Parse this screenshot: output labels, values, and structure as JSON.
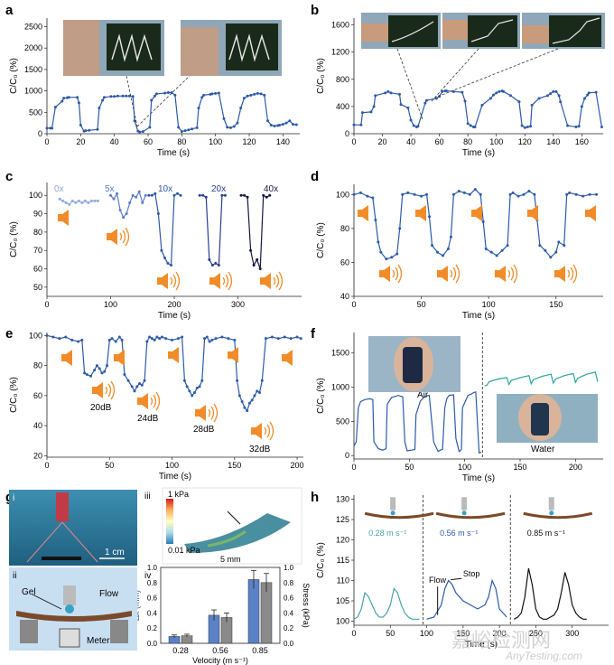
{
  "figure_labels": {
    "a": "a",
    "b": "b",
    "c": "c",
    "d": "d",
    "e": "e",
    "f": "f",
    "g": "g",
    "h": "h"
  },
  "watermark": {
    "line1": "嘉峪检测网",
    "line2": "AnyTesting.com"
  },
  "chart_data": [
    {
      "id": "a",
      "type": "line",
      "xlabel": "Time (s)",
      "ylabel": "C/C₀ (%)",
      "xlim": [
        0,
        150
      ],
      "ylim": [
        0,
        2700
      ],
      "xticks": [
        0,
        20,
        40,
        60,
        80,
        100,
        120,
        140
      ],
      "yticks": [
        0,
        500,
        1000,
        1500,
        2000,
        2500
      ],
      "color": "#2d5aa8",
      "x": [
        0,
        2,
        3,
        5,
        9,
        10,
        12,
        13,
        18,
        19,
        20,
        22,
        23,
        25,
        30,
        31,
        33,
        34,
        38,
        40,
        42,
        45,
        47,
        49,
        51,
        52,
        54,
        55,
        57,
        61,
        62,
        64,
        65,
        70,
        72,
        74,
        76,
        78,
        80,
        82,
        84,
        86,
        89,
        90,
        92,
        93,
        97,
        98,
        100,
        102,
        105,
        107,
        109,
        111,
        113,
        115,
        117,
        119,
        121,
        123,
        125,
        127,
        129,
        131,
        133,
        135,
        137,
        138,
        140,
        142,
        144,
        146,
        148
      ],
      "values": [
        130,
        130,
        130,
        620,
        760,
        830,
        840,
        850,
        850,
        720,
        200,
        60,
        70,
        80,
        100,
        600,
        780,
        850,
        870,
        870,
        880,
        880,
        880,
        880,
        870,
        300,
        60,
        40,
        50,
        150,
        780,
        880,
        930,
        950,
        960,
        960,
        900,
        150,
        50,
        70,
        90,
        110,
        140,
        600,
        850,
        900,
        920,
        930,
        940,
        950,
        350,
        150,
        140,
        170,
        250,
        600,
        830,
        880,
        900,
        920,
        940,
        930,
        900,
        300,
        200,
        180,
        190,
        200,
        220,
        250,
        300,
        220,
        210
      ]
    },
    {
      "id": "b",
      "type": "line",
      "xlabel": "Time (s)",
      "ylabel": "C/C₀ (%)",
      "xlim": [
        0,
        175
      ],
      "ylim": [
        0,
        1700
      ],
      "xticks": [
        0,
        20,
        40,
        60,
        80,
        100,
        120,
        140,
        160
      ],
      "yticks": [
        0,
        400,
        800,
        1200,
        1600
      ],
      "color": "#2d5aa8",
      "x": [
        0,
        5,
        6,
        12,
        14,
        15,
        22,
        24,
        26,
        32,
        33,
        38,
        40,
        42,
        44,
        45,
        50,
        51,
        58,
        60,
        62,
        64,
        65,
        70,
        76,
        78,
        80,
        82,
        84,
        85,
        90,
        96,
        98,
        100,
        102,
        104,
        105,
        110,
        116,
        118,
        120,
        122,
        124,
        125,
        130,
        136,
        138,
        140,
        142,
        144,
        145,
        150,
        156,
        158,
        160,
        162,
        164,
        165,
        170,
        174
      ],
      "values": [
        130,
        130,
        310,
        320,
        400,
        560,
        600,
        620,
        600,
        580,
        430,
        380,
        200,
        120,
        100,
        110,
        450,
        490,
        520,
        550,
        620,
        630,
        630,
        620,
        610,
        480,
        150,
        120,
        100,
        100,
        420,
        520,
        570,
        600,
        620,
        630,
        620,
        560,
        470,
        120,
        90,
        100,
        110,
        420,
        520,
        560,
        590,
        620,
        620,
        560,
        470,
        120,
        100,
        110,
        400,
        520,
        570,
        600,
        610,
        100
      ]
    },
    {
      "id": "c",
      "type": "scatter",
      "xlabel": "Time (s)",
      "ylabel": "C/C₀ (%)",
      "xlim": [
        0,
        400
      ],
      "ylim": [
        45,
        107
      ],
      "xticks": [
        0,
        100,
        200,
        300
      ],
      "yticks": [
        50,
        60,
        70,
        80,
        90,
        100
      ],
      "annotations": [
        "0x",
        "5x",
        "10x",
        "20x",
        "40x"
      ],
      "series": [
        {
          "name": "0x",
          "color": "#8fa9dc",
          "x": [
            20,
            25,
            30,
            35,
            40,
            45,
            50,
            55,
            60,
            65,
            70,
            75,
            80
          ],
          "values": [
            98,
            97,
            96,
            95,
            97,
            96,
            97,
            96,
            97,
            96,
            97,
            97,
            97
          ]
        },
        {
          "name": "5x",
          "color": "#5b7fc4",
          "x": [
            100,
            105,
            110,
            115,
            120,
            125,
            130,
            135,
            140,
            145,
            150,
            155
          ],
          "values": [
            100,
            98,
            101,
            92,
            88,
            90,
            96,
            100,
            99,
            102,
            96,
            100
          ]
        },
        {
          "name": "10x",
          "color": "#2d5aa8",
          "x": [
            160,
            165,
            170,
            175,
            180,
            185,
            190,
            195,
            200,
            205,
            210
          ],
          "values": [
            100,
            100,
            101,
            90,
            70,
            66,
            63,
            62,
            100,
            101,
            100
          ]
        },
        {
          "name": "20x",
          "color": "#2a3f8f",
          "x": [
            240,
            245,
            250,
            255,
            260,
            265,
            270,
            275,
            280
          ],
          "values": [
            100,
            100,
            99,
            65,
            62,
            63,
            62,
            100,
            100
          ]
        },
        {
          "name": "40x",
          "color": "#14183f",
          "x": [
            305,
            310,
            315,
            320,
            325,
            330,
            335,
            340,
            345,
            350
          ],
          "values": [
            100,
            100,
            99,
            70,
            62,
            65,
            60,
            100,
            99,
            100
          ]
        }
      ]
    },
    {
      "id": "d",
      "type": "line",
      "xlabel": "Time (s)",
      "ylabel": "C/C₀ (%)",
      "xlim": [
        0,
        185
      ],
      "ylim": [
        40,
        106
      ],
      "xticks": [
        0,
        50,
        100,
        150
      ],
      "yticks": [
        40,
        60,
        80,
        100
      ],
      "color": "#2d5aa8",
      "x": [
        0,
        5,
        10,
        14,
        16,
        18,
        20,
        24,
        28,
        32,
        34,
        36,
        40,
        45,
        50,
        54,
        56,
        58,
        62,
        66,
        70,
        72,
        74,
        78,
        82,
        86,
        90,
        94,
        96,
        98,
        102,
        106,
        110,
        114,
        116,
        118,
        122,
        126,
        130,
        134,
        136,
        138,
        142,
        146,
        150,
        152,
        156,
        158,
        160,
        165,
        170,
        175,
        180
      ],
      "values": [
        100,
        101,
        99,
        98,
        85,
        72,
        66,
        62,
        63,
        65,
        80,
        100,
        101,
        100,
        99,
        100,
        87,
        70,
        66,
        64,
        68,
        75,
        100,
        102,
        101,
        100,
        103,
        100,
        84,
        68,
        66,
        64,
        67,
        70,
        100,
        101,
        99,
        100,
        102,
        100,
        85,
        70,
        67,
        63,
        66,
        72,
        70,
        100,
        101,
        100,
        99,
        100,
        100
      ]
    },
    {
      "id": "e",
      "type": "scatter",
      "xlabel": "Time (s)",
      "ylabel": "C/C₀ (%)",
      "xlim": [
        0,
        205
      ],
      "ylim": [
        19,
        102
      ],
      "xticks": [
        0,
        50,
        100,
        150,
        200
      ],
      "yticks": [
        20,
        40,
        60,
        80,
        100
      ],
      "color": "#2d5aa8",
      "annotations": [
        "20dB",
        "24dB",
        "28dB",
        "32dB"
      ],
      "x": [
        0,
        5,
        10,
        15,
        20,
        25,
        28,
        30,
        32,
        35,
        38,
        40,
        42,
        44,
        46,
        48,
        50,
        52,
        55,
        58,
        60,
        62,
        65,
        68,
        70,
        72,
        74,
        76,
        78,
        80,
        82,
        84,
        86,
        88,
        90,
        92,
        95,
        100,
        105,
        108,
        110,
        112,
        114,
        116,
        118,
        120,
        122,
        124,
        126,
        128,
        130,
        132,
        135,
        140,
        145,
        150,
        152,
        154,
        156,
        158,
        160,
        162,
        164,
        166,
        168,
        170,
        172,
        175,
        180,
        185,
        190,
        195,
        200,
        203
      ],
      "values": [
        100,
        99,
        98,
        99,
        97,
        96,
        97,
        75,
        74,
        73,
        77,
        80,
        78,
        75,
        76,
        80,
        97,
        98,
        96,
        99,
        97,
        74,
        70,
        66,
        63,
        66,
        68,
        67,
        70,
        96,
        99,
        98,
        97,
        99,
        98,
        99,
        98,
        97,
        98,
        99,
        70,
        66,
        63,
        60,
        62,
        65,
        66,
        70,
        98,
        99,
        96,
        97,
        98,
        99,
        98,
        97,
        70,
        60,
        56,
        52,
        50,
        55,
        57,
        60,
        63,
        62,
        70,
        98,
        99,
        98,
        99,
        98,
        99,
        98
      ]
    },
    {
      "id": "f",
      "type": "line",
      "xlabel": "Time (s)",
      "ylabel": "C/C₀ (%)",
      "xlim": [
        0,
        225
      ],
      "ylim": [
        -50,
        1800
      ],
      "xticks": [
        0,
        50,
        100,
        150,
        200
      ],
      "yticks": [
        0,
        500,
        1000,
        1500
      ],
      "annotations": [
        "Air",
        "Water"
      ],
      "series": [
        {
          "name": "Air",
          "color": "#2d5aa8",
          "x": [
            0,
            2,
            4,
            6,
            10,
            14,
            17,
            18,
            22,
            26,
            29,
            30,
            34,
            38,
            40,
            42,
            44,
            46,
            48,
            52,
            55,
            56,
            60,
            64,
            67,
            68,
            72,
            76,
            78,
            80,
            82,
            84,
            86,
            90,
            92,
            95,
            97,
            98,
            103,
            106,
            108,
            110,
            113,
            115
          ],
          "values": [
            140,
            200,
            700,
            790,
            820,
            830,
            820,
            200,
            100,
            80,
            100,
            750,
            850,
            870,
            880,
            870,
            860,
            200,
            70,
            80,
            90,
            600,
            800,
            860,
            880,
            880,
            200,
            60,
            80,
            90,
            700,
            840,
            880,
            890,
            250,
            60,
            90,
            700,
            880,
            900,
            920,
            930,
            40,
            50
          ]
        },
        {
          "name": "Water",
          "color": "#2aa39a",
          "x": [
            118,
            120,
            122,
            130,
            138,
            140,
            142,
            150,
            158,
            160,
            162,
            170,
            178,
            180,
            182,
            190,
            198,
            200,
            202,
            210,
            218,
            220
          ],
          "values": [
            1020,
            1030,
            1080,
            1120,
            1140,
            1040,
            1100,
            1140,
            1170,
            1050,
            1110,
            1160,
            1190,
            1060,
            1120,
            1170,
            1200,
            1070,
            1130,
            1190,
            1220,
            1080
          ]
        }
      ]
    },
    {
      "id": "g-iv",
      "type": "bar",
      "xlabel": "Velocity (m s⁻¹)",
      "ylabel": "Δx (mm)",
      "y2label": "Stress (kPa)",
      "categories": [
        "0.28",
        "0.56",
        "0.85"
      ],
      "ylim": [
        0,
        1.0
      ],
      "y2lim": [
        0,
        1.0
      ],
      "yticks": [
        0.0,
        0.2,
        0.4,
        0.6,
        0.8,
        1.0
      ],
      "series": [
        {
          "name": "Δx",
          "color": "#5b82c6",
          "values": [
            0.09,
            0.37,
            0.84
          ],
          "errors": [
            0.02,
            0.07,
            0.12
          ]
        },
        {
          "name": "Stress",
          "color": "#8a8a8a",
          "values": [
            0.1,
            0.34,
            0.8
          ],
          "errors": [
            0.02,
            0.06,
            0.12
          ]
        }
      ]
    },
    {
      "id": "h",
      "type": "line",
      "xlabel": "Time (s)",
      "ylabel": "C/C₀ (%)",
      "xlim": [
        0,
        350
      ],
      "ylim": [
        99,
        131
      ],
      "xticks": [
        0,
        50,
        100,
        150,
        200,
        250,
        300
      ],
      "yticks": [
        100,
        105,
        110,
        115,
        120,
        125,
        130
      ],
      "annotations": [
        "Flow",
        "Stop"
      ],
      "series": [
        {
          "name": "0.28 m s⁻¹",
          "color": "#4aa3a8",
          "x": [
            0,
            5,
            10,
            15,
            20,
            25,
            30,
            35,
            40,
            45,
            50,
            55,
            60,
            65,
            70,
            75,
            80,
            85,
            90
          ],
          "values": [
            100.5,
            101,
            103,
            107,
            106,
            104,
            102,
            101,
            101,
            102,
            104,
            108,
            107,
            104,
            102,
            101,
            100.5,
            100.5,
            100.5
          ]
        },
        {
          "name": "0.56 m s⁻¹",
          "color": "#2d5aa8",
          "x": [
            100,
            110,
            120,
            125,
            130,
            135,
            140,
            150,
            160,
            170,
            180,
            185,
            190,
            195,
            200,
            210
          ],
          "values": [
            100.5,
            101,
            104,
            108,
            110,
            109,
            107,
            105,
            104,
            103,
            104,
            106,
            110,
            108,
            103,
            101
          ]
        },
        {
          "name": "0.85 m s⁻¹",
          "color": "#111111",
          "x": [
            220,
            225,
            230,
            235,
            240,
            245,
            250,
            255,
            260,
            265,
            270,
            275,
            280,
            285,
            290,
            295,
            300,
            305,
            310,
            315,
            320
          ],
          "values": [
            100.5,
            101,
            102,
            106,
            113,
            109,
            103,
            101,
            100.5,
            100.5,
            101,
            101.5,
            103,
            107,
            112,
            109,
            104,
            102,
            101,
            100.5,
            100.5
          ]
        }
      ],
      "speed_labels": [
        "0.28 m s⁻¹",
        "0.56 m s⁻¹",
        "0.85 m s⁻¹"
      ]
    }
  ],
  "panel_g": {
    "sub_i": "i",
    "sub_ii": "ii",
    "sub_iii": "iii",
    "sub_iv": "iv",
    "scale_bar": "1 cm",
    "scale_bar_iii": "5 mm",
    "colorbar_top": "1 kPa",
    "colorbar_bottom": "0.01 kPa",
    "gel_label": "Gel",
    "flow_label": "Flow",
    "meter_label": "Meter"
  }
}
